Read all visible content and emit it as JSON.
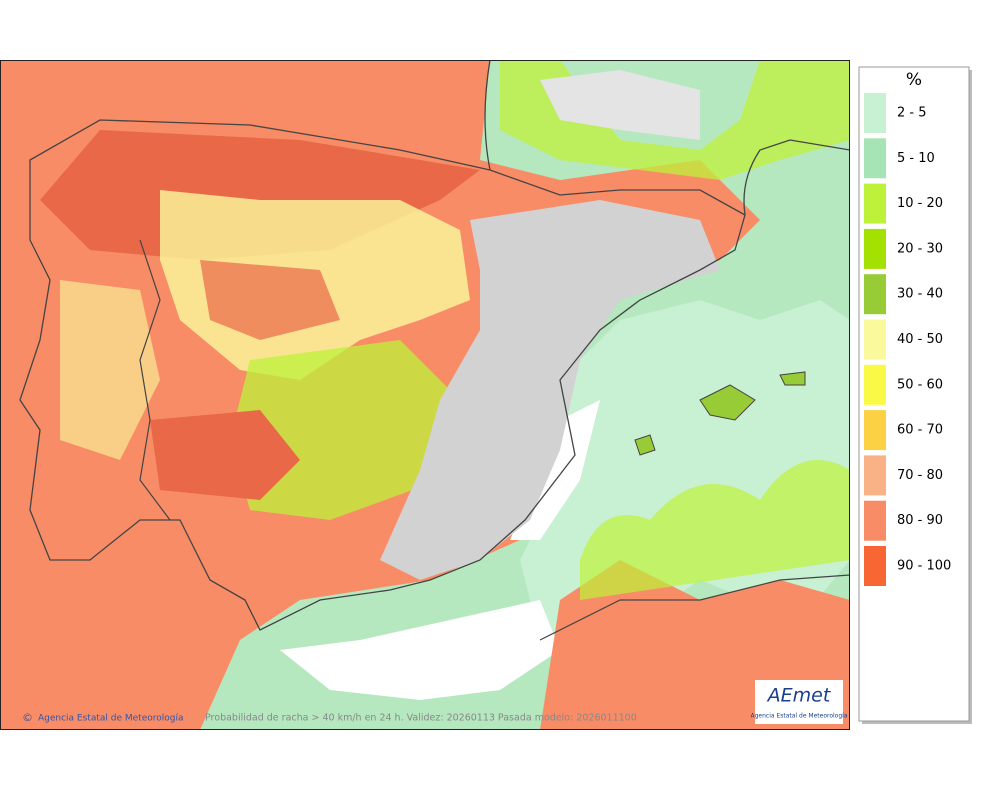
{
  "map": {
    "footer_left": "Agencia Estatal de Meteorología",
    "footer_caption": "Probabilidad de racha > 40 km/h en 24 h. Validez: 20260113 Pasada modelo: 2026011100",
    "logo": {
      "name": "AEmet",
      "subtitle": "Agencia Estatal de Meteorología"
    }
  },
  "legend": {
    "title": "%",
    "items": [
      {
        "label": "2 - 5",
        "color": "#c8f0d2"
      },
      {
        "label": "5 - 10",
        "color": "#a6e4b6"
      },
      {
        "label": "10 - 20",
        "color": "#bef23a"
      },
      {
        "label": "20 - 30",
        "color": "#a4e000"
      },
      {
        "label": "30 - 40",
        "color": "#98cc36"
      },
      {
        "label": "40 - 50",
        "color": "#fafa9c"
      },
      {
        "label": "50 - 60",
        "color": "#fafa46"
      },
      {
        "label": "60 - 70",
        "color": "#fcd244"
      },
      {
        "label": "70 - 80",
        "color": "#f8b286"
      },
      {
        "label": "80 - 90",
        "color": "#f88c66"
      },
      {
        "label": "90 - 100",
        "color": "#f86634"
      }
    ]
  }
}
